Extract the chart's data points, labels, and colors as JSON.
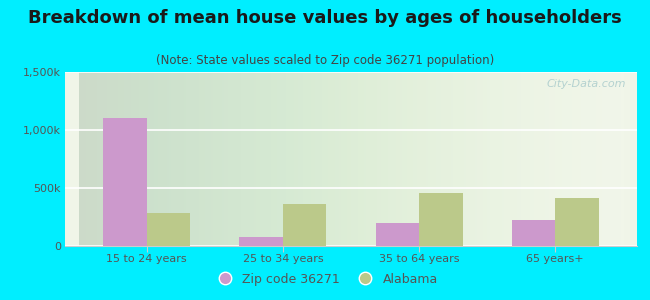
{
  "title": "Breakdown of mean house values by ages of householders",
  "subtitle": "(Note: State values scaled to Zip code 36271 population)",
  "categories": [
    "15 to 24 years",
    "25 to 34 years",
    "35 to 64 years",
    "65 years+"
  ],
  "zip_values": [
    1100000,
    80000,
    195000,
    225000
  ],
  "state_values": [
    285000,
    365000,
    455000,
    415000
  ],
  "zip_color": "#cc99cc",
  "state_color": "#bbc98a",
  "background_color": "#00eeff",
  "plot_bg_color": "#e8f0d8",
  "ylim": [
    0,
    1500000
  ],
  "yticks": [
    0,
    500000,
    1000000,
    1500000
  ],
  "ytick_labels": [
    "0",
    "500k",
    "1,000k",
    "1,500k"
  ],
  "legend_zip_label": "Zip code 36271",
  "legend_state_label": "Alabama",
  "bar_width": 0.32,
  "title_fontsize": 13,
  "subtitle_fontsize": 8.5,
  "axis_label_fontsize": 8,
  "tick_color": "#555555",
  "watermark_text": "City-Data.com",
  "watermark_color": "#aacccc"
}
